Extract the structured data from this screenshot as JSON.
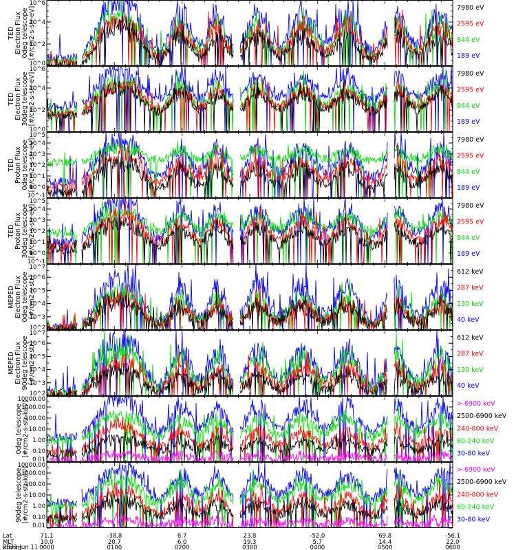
{
  "colors": {
    "blue": "#0000ff",
    "red": "#ff0000",
    "green": "#00dd00",
    "black": "#000000",
    "magenta": "#ff00ff"
  },
  "chart_data": {
    "type": "line",
    "panels": [
      {
        "id": "ted-e-0",
        "ylabel": [
          "TED",
          "Electron Flux",
          "0deg telescope",
          "[#/cm2-s-str-eV]"
        ],
        "ytick_labels": [
          "10^0",
          "10^2",
          "10^4",
          "10^6"
        ],
        "ylim": [
          0,
          6
        ],
        "tick_vals": [
          0,
          2,
          4,
          6
        ],
        "channels": [
          {
            "label": "7980 eV",
            "color": "black"
          },
          {
            "label": "2595 eV",
            "color": "red"
          },
          {
            "label": "844 eV",
            "color": "green"
          },
          {
            "label": "189 eV",
            "color": "blue"
          }
        ],
        "series": [
          {
            "c": "blue",
            "base": 0.7,
            "amp": 5.2
          },
          {
            "c": "green",
            "base": 0.4,
            "amp": 4.3
          },
          {
            "c": "red",
            "base": 0.3,
            "amp": 4.0
          },
          {
            "c": "black",
            "base": 0.1,
            "amp": 3.4
          }
        ],
        "passes": [
          [
            0.15,
            0.17
          ],
          [
            0.21,
            0.17
          ],
          [
            0.33,
            0.14
          ],
          [
            0.42,
            0.12
          ],
          [
            0.52,
            0.15
          ],
          [
            0.63,
            0.17
          ],
          [
            0.74,
            0.16
          ],
          [
            0.86,
            0.15
          ],
          [
            0.97,
            0.17
          ]
        ]
      },
      {
        "id": "ted-e-30",
        "ylabel": [
          "TED",
          "Electron Flux",
          "30deg telescope",
          "[#/cm2-s-str-eV]"
        ],
        "ytick_labels": [
          "10^0",
          "10^2",
          "10^4",
          "10^6"
        ],
        "ylim": [
          0,
          6
        ],
        "tick_vals": [
          0,
          2,
          4,
          6
        ],
        "channels": [
          {
            "label": "7980 eV",
            "color": "black"
          },
          {
            "label": "2595 eV",
            "color": "red"
          },
          {
            "label": "844 eV",
            "color": "green"
          },
          {
            "label": "189 eV",
            "color": "blue"
          }
        ],
        "series": [
          {
            "c": "blue",
            "base": 2.4,
            "amp": 3.4
          },
          {
            "c": "green",
            "base": 1.7,
            "amp": 3.0
          },
          {
            "c": "red",
            "base": 1.6,
            "amp": 2.8
          },
          {
            "c": "black",
            "base": 1.5,
            "amp": 2.5
          }
        ],
        "passes": [
          [
            0.15,
            0.17
          ],
          [
            0.21,
            0.17
          ],
          [
            0.33,
            0.14
          ],
          [
            0.42,
            0.12
          ],
          [
            0.52,
            0.15
          ],
          [
            0.63,
            0.17
          ],
          [
            0.74,
            0.16
          ],
          [
            0.86,
            0.15
          ],
          [
            0.97,
            0.17
          ]
        ]
      },
      {
        "id": "ted-p-0",
        "ylabel": [
          "TED",
          "Proton Flux",
          "0deg telescope",
          "[#/cm2-s-str-eV]"
        ],
        "ytick_labels": [
          "10^-1",
          "10^0",
          "10^1",
          "10^2",
          "10^3",
          "10^4",
          "10^5"
        ],
        "ylim": [
          -1,
          5
        ],
        "tick_vals": [
          -1,
          0,
          1,
          2,
          3,
          4,
          5
        ],
        "channels": [
          {
            "label": "7980 eV",
            "color": "black"
          },
          {
            "label": "2595 eV",
            "color": "red"
          },
          {
            "label": "844 eV",
            "color": "green"
          },
          {
            "label": "189 eV",
            "color": "blue"
          }
        ],
        "series": [
          {
            "c": "blue",
            "base": 0.5,
            "amp": 3.8
          },
          {
            "c": "green",
            "base": 2.2,
            "amp": 1.5
          },
          {
            "c": "red",
            "base": 0.0,
            "amp": 3.0
          },
          {
            "c": "black",
            "base": -0.5,
            "amp": 2.8
          }
        ],
        "passes": [
          [
            0.15,
            0.17
          ],
          [
            0.21,
            0.17
          ],
          [
            0.33,
            0.14
          ],
          [
            0.42,
            0.12
          ],
          [
            0.52,
            0.15
          ],
          [
            0.63,
            0.17
          ],
          [
            0.74,
            0.16
          ],
          [
            0.86,
            0.15
          ],
          [
            0.97,
            0.17
          ]
        ]
      },
      {
        "id": "ted-p-30",
        "ylabel": [
          "TED",
          "Proton Flux",
          "30deg telescope",
          "[#/cm2-s-str-eV]"
        ],
        "ytick_labels": [
          "10^-1",
          "10^0",
          "10^1",
          "10^2",
          "10^3",
          "10^4",
          "10^5"
        ],
        "ylim": [
          -1,
          5
        ],
        "tick_vals": [
          -1,
          0,
          1,
          2,
          3,
          4,
          5
        ],
        "channels": [
          {
            "label": "7980 eV",
            "color": "black"
          },
          {
            "label": "2595 eV",
            "color": "red"
          },
          {
            "label": "844 eV",
            "color": "green"
          },
          {
            "label": "189 eV",
            "color": "blue"
          }
        ],
        "series": [
          {
            "c": "blue",
            "base": 1.0,
            "amp": 3.8
          },
          {
            "c": "green",
            "base": 1.8,
            "amp": 2.0
          },
          {
            "c": "red",
            "base": 0.6,
            "amp": 2.8
          },
          {
            "c": "black",
            "base": 0.3,
            "amp": 2.4
          }
        ],
        "passes": [
          [
            0.15,
            0.17
          ],
          [
            0.21,
            0.17
          ],
          [
            0.33,
            0.14
          ],
          [
            0.42,
            0.12
          ],
          [
            0.52,
            0.15
          ],
          [
            0.63,
            0.17
          ],
          [
            0.74,
            0.16
          ],
          [
            0.86,
            0.15
          ],
          [
            0.97,
            0.17
          ]
        ]
      },
      {
        "id": "meped-e-0",
        "ylabel": [
          "MEPED",
          "Electron Flux",
          "0deg telescope",
          "[#/cm2-s-str]"
        ],
        "ytick_labels": [
          "10^2",
          "10^3",
          "10^4",
          "10^5",
          "10^6",
          "10^7"
        ],
        "ylim": [
          2,
          7
        ],
        "tick_vals": [
          2,
          3,
          4,
          5,
          6,
          7
        ],
        "channels": [
          {
            "label": "612 keV",
            "color": "black"
          },
          {
            "label": "287 keV",
            "color": "red"
          },
          {
            "label": "130 keV",
            "color": "green"
          },
          {
            "label": "40 keV",
            "color": "blue"
          }
        ],
        "series": [
          {
            "c": "blue",
            "base": 2.2,
            "amp": 3.8
          },
          {
            "c": "green",
            "base": 2.1,
            "amp": 2.8
          },
          {
            "c": "red",
            "base": 2.05,
            "amp": 2.4
          },
          {
            "c": "black",
            "base": 2.0,
            "amp": 2.3
          }
        ],
        "passes": [
          [
            0.15,
            0.17
          ],
          [
            0.21,
            0.17
          ],
          [
            0.33,
            0.14
          ],
          [
            0.42,
            0.12
          ],
          [
            0.52,
            0.15
          ],
          [
            0.63,
            0.17
          ],
          [
            0.74,
            0.16
          ],
          [
            0.86,
            0.15
          ],
          [
            0.97,
            0.17
          ]
        ]
      },
      {
        "id": "meped-e-90",
        "ylabel": [
          "MEPED",
          "Electron Flux",
          "90deg telescope",
          "[#/cm2-s-str]"
        ],
        "ytick_labels": [
          "10^2",
          "10^3",
          "10^4",
          "10^5",
          "10^6",
          "10^7"
        ],
        "ylim": [
          2,
          7
        ],
        "tick_vals": [
          2,
          3,
          4,
          5,
          6,
          7
        ],
        "channels": [
          {
            "label": "612 keV",
            "color": "black"
          },
          {
            "label": "287 keV",
            "color": "red"
          },
          {
            "label": "130 keV",
            "color": "green"
          },
          {
            "label": "40 keV",
            "color": "blue"
          }
        ],
        "series": [
          {
            "c": "blue",
            "base": 2.4,
            "amp": 3.8
          },
          {
            "c": "green",
            "base": 2.2,
            "amp": 3.4
          },
          {
            "c": "red",
            "base": 2.1,
            "amp": 2.5
          },
          {
            "c": "black",
            "base": 2.0,
            "amp": 2.0
          }
        ],
        "passes": [
          [
            0.15,
            0.17
          ],
          [
            0.21,
            0.17
          ],
          [
            0.33,
            0.14
          ],
          [
            0.42,
            0.12
          ],
          [
            0.52,
            0.15
          ],
          [
            0.63,
            0.17
          ],
          [
            0.74,
            0.16
          ],
          [
            0.86,
            0.15
          ],
          [
            0.97,
            0.17
          ]
        ]
      },
      {
        "id": "meped-p-0",
        "ylabel": [
          "0deg telescope",
          "[#/cm2-s-str-keV]"
        ],
        "ytick_labels": [
          "0.01",
          "0.10",
          "1.00",
          "10.00",
          "100.00",
          "1000.00",
          "10000.00"
        ],
        "ylim": [
          -2,
          4
        ],
        "tick_vals": [
          -2,
          -1,
          0,
          1,
          2,
          3,
          4
        ],
        "channels": [
          {
            "label": "> 6900 keV",
            "color": "magenta"
          },
          {
            "label": "2500-6900 keV",
            "color": "black"
          },
          {
            "label": "240-800 keV",
            "color": "red"
          },
          {
            "label": "80-240 keV",
            "color": "green"
          },
          {
            "label": "30-80 keV",
            "color": "blue"
          }
        ],
        "series": [
          {
            "c": "blue",
            "base": 0.3,
            "amp": 3.5
          },
          {
            "c": "green",
            "base": 0.0,
            "amp": 2.4
          },
          {
            "c": "red",
            "base": -1.0,
            "amp": 2.3
          },
          {
            "c": "black",
            "base": -1.3,
            "amp": 1.6
          },
          {
            "c": "magenta",
            "base": -1.9,
            "amp": 0.7
          }
        ],
        "passes": [
          [
            0.15,
            0.17
          ],
          [
            0.21,
            0.17
          ],
          [
            0.33,
            0.14
          ],
          [
            0.42,
            0.12
          ],
          [
            0.52,
            0.15
          ],
          [
            0.63,
            0.17
          ],
          [
            0.74,
            0.16
          ],
          [
            0.86,
            0.15
          ],
          [
            0.97,
            0.17
          ]
        ]
      },
      {
        "id": "meped-p-90",
        "ylabel": [
          "90deg telescope",
          "[#/cm2-s-str-keV]"
        ],
        "ytick_labels": [
          "0.01",
          "0.10",
          "1.00",
          "10.00",
          "100.00",
          "1000.00",
          "10000.00"
        ],
        "ylim": [
          -2,
          4
        ],
        "tick_vals": [
          -2,
          -1,
          0,
          1,
          2,
          3,
          4
        ],
        "channels": [
          {
            "label": "> 6900 keV",
            "color": "magenta"
          },
          {
            "label": "2500-6900 keV",
            "color": "black"
          },
          {
            "label": "240-800 keV",
            "color": "red"
          },
          {
            "label": "80-240 keV",
            "color": "green"
          },
          {
            "label": "30-80 keV",
            "color": "blue"
          }
        ],
        "series": [
          {
            "c": "blue",
            "base": 0.3,
            "amp": 3.2
          },
          {
            "c": "green",
            "base": 0.0,
            "amp": 2.5
          },
          {
            "c": "red",
            "base": -1.0,
            "amp": 2.4
          },
          {
            "c": "black",
            "base": -1.2,
            "amp": 1.8
          },
          {
            "c": "magenta",
            "base": -1.9,
            "amp": 0.8
          }
        ],
        "passes": [
          [
            0.15,
            0.17
          ],
          [
            0.21,
            0.17
          ],
          [
            0.33,
            0.14
          ],
          [
            0.42,
            0.12
          ],
          [
            0.52,
            0.15
          ],
          [
            0.63,
            0.17
          ],
          [
            0.74,
            0.16
          ],
          [
            0.86,
            0.15
          ],
          [
            0.97,
            0.17
          ]
        ]
      }
    ],
    "x_axis": {
      "row_labels": [
        "Lat",
        "MLT",
        "hhmm"
      ],
      "columns": [
        {
          "lat": "71.1",
          "mlt": "10.0",
          "hhmm": "0000"
        },
        {
          "lat": "-38.8",
          "mlt": "20.7",
          "hhmm": "0100"
        },
        {
          "lat": "6.7",
          "mlt": "6.0",
          "hhmm": "0200"
        },
        {
          "lat": "23.8",
          "mlt": "19.3",
          "hhmm": "0300"
        },
        {
          "lat": "-52.0",
          "mlt": "5.7",
          "hhmm": "0400"
        },
        {
          "lat": "69.8",
          "mlt": "14.4",
          "hhmm": "0500"
        },
        {
          "lat": "-56.1",
          "mlt": "22.0",
          "hhmm": "0600"
        }
      ],
      "date": "2021 Jun 11"
    }
  }
}
